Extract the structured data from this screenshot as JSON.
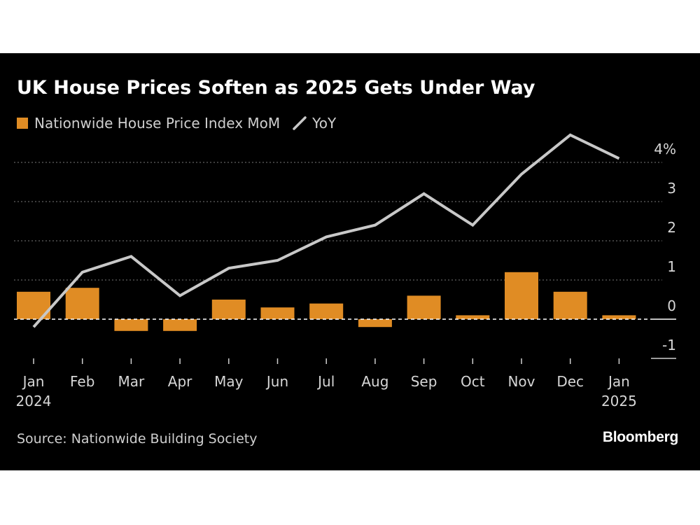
{
  "colors": {
    "bar": "#e08c24",
    "line": "#c8c8c8",
    "grid": "#7a7a7a"
  },
  "chart_data": {
    "type": "bar+line",
    "title": "UK House Prices Soften as 2025 Gets Under Way",
    "legend": [
      {
        "label": "Nationwide House Price Index MoM",
        "kind": "bar"
      },
      {
        "label": "YoY",
        "kind": "line"
      }
    ],
    "categories": [
      "Jan",
      "Feb",
      "Mar",
      "Apr",
      "May",
      "Jun",
      "Jul",
      "Aug",
      "Sep",
      "Oct",
      "Nov",
      "Dec",
      "Jan"
    ],
    "category_years": [
      "2024",
      "",
      "",
      "",
      "",
      "",
      "",
      "",
      "",
      "",
      "",
      "",
      "2025"
    ],
    "series": [
      {
        "name": "Nationwide House Price Index MoM",
        "type": "bar",
        "values": [
          0.7,
          0.8,
          -0.3,
          -0.3,
          0.5,
          0.3,
          0.4,
          -0.2,
          0.6,
          0.1,
          1.2,
          0.7,
          0.1
        ]
      },
      {
        "name": "YoY",
        "type": "line",
        "values": [
          -0.2,
          1.2,
          1.6,
          0.6,
          1.3,
          1.5,
          2.1,
          2.4,
          3.2,
          2.4,
          3.7,
          4.7,
          4.1
        ]
      }
    ],
    "y_ticks": [
      {
        "value": 4,
        "label": "4%"
      },
      {
        "value": 3,
        "label": "3"
      },
      {
        "value": 2,
        "label": "2"
      },
      {
        "value": 1,
        "label": "1"
      },
      {
        "value": 0,
        "label": "0"
      },
      {
        "value": -1,
        "label": "-1"
      }
    ],
    "ylim": [
      -1,
      4.7
    ],
    "source": "Source: Nationwide Building Society",
    "brand": "Bloomberg"
  }
}
